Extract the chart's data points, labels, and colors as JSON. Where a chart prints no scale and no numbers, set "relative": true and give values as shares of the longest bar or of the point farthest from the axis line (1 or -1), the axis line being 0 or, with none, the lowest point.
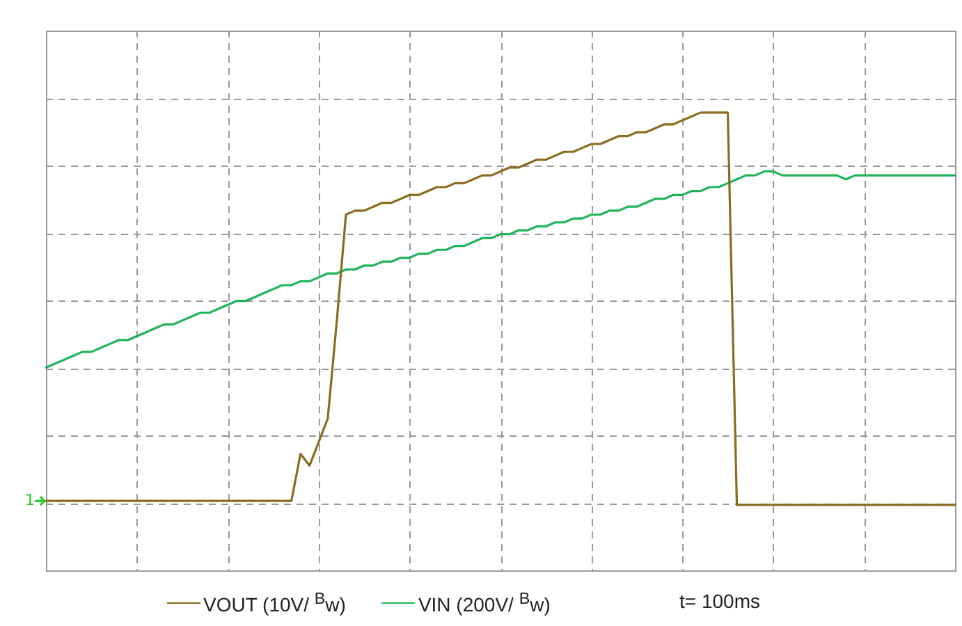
{
  "chart_data": {
    "type": "line",
    "relative": true,
    "grid": true,
    "legend": "bottom",
    "marker": "none",
    "line_style": "solid",
    "categories": [
      null,
      null,
      null,
      null,
      null,
      null,
      null,
      null,
      null,
      null,
      null,
      null,
      null,
      null,
      null,
      null,
      null,
      null,
      null,
      null,
      null,
      null,
      null,
      null,
      null,
      null,
      null,
      null,
      null,
      null,
      null,
      null,
      null,
      null,
      null,
      null,
      null,
      null,
      null,
      null,
      null,
      null,
      null,
      null,
      null,
      null,
      null,
      null,
      null,
      null,
      null,
      null,
      null,
      null,
      null,
      null,
      null,
      null,
      null,
      null,
      null,
      null,
      null,
      null,
      null,
      null,
      null,
      null,
      null,
      null,
      null,
      null,
      null,
      null,
      null,
      null,
      null,
      null,
      null,
      null,
      null,
      null,
      null,
      null,
      null,
      null,
      null,
      null,
      null,
      null,
      null,
      null,
      null,
      null,
      null,
      null,
      null,
      null,
      null,
      null,
      null
    ],
    "series": [
      {
        "name": "VOUT (10V/ $^{B}$w)",
        "color": "#8b6b1e",
        "values": [
          0.01,
          0.01,
          0.01,
          0.01,
          0.01,
          0.01,
          0.01,
          0.01,
          0.01,
          0.01,
          0.01,
          0.01,
          0.01,
          0.01,
          0.01,
          0.01,
          0.01,
          0.01,
          0.01,
          0.01,
          0.01,
          0.01,
          0.01,
          0.01,
          0.01,
          0.01,
          0.01,
          0.01,
          0.13,
          0.1,
          0.16,
          0.22,
          0.47,
          0.74,
          0.75,
          0.75,
          0.76,
          0.77,
          0.77,
          0.78,
          0.79,
          0.79,
          0.8,
          0.81,
          0.81,
          0.82,
          0.82,
          0.83,
          0.84,
          0.84,
          0.85,
          0.86,
          0.86,
          0.87,
          0.88,
          0.88,
          0.89,
          0.9,
          0.9,
          0.91,
          0.92,
          0.92,
          0.93,
          0.94,
          0.94,
          0.95,
          0.95,
          0.96,
          0.97,
          0.97,
          0.98,
          0.99,
          1,
          1,
          1,
          1,
          0,
          0,
          0,
          0,
          0,
          0,
          0,
          0,
          0,
          0,
          0,
          0,
          0,
          0,
          0,
          0,
          0,
          0,
          0,
          0,
          0,
          0,
          0,
          0,
          0
        ]
      },
      {
        "name": "VIN (200V/ $^{B}$w)",
        "color": "#1fb45a",
        "values": [
          0.35,
          0.36,
          0.37,
          0.38,
          0.39,
          0.39,
          0.4,
          0.41,
          0.42,
          0.42,
          0.43,
          0.44,
          0.45,
          0.46,
          0.46,
          0.47,
          0.48,
          0.49,
          0.49,
          0.5,
          0.51,
          0.52,
          0.52,
          0.53,
          0.54,
          0.55,
          0.56,
          0.56,
          0.57,
          0.57,
          0.58,
          0.59,
          0.59,
          0.6,
          0.6,
          0.61,
          0.61,
          0.62,
          0.62,
          0.63,
          0.63,
          0.64,
          0.64,
          0.65,
          0.65,
          0.66,
          0.66,
          0.67,
          0.68,
          0.68,
          0.69,
          0.69,
          0.7,
          0.7,
          0.71,
          0.71,
          0.72,
          0.72,
          0.73,
          0.73,
          0.74,
          0.74,
          0.75,
          0.75,
          0.76,
          0.76,
          0.77,
          0.78,
          0.78,
          0.79,
          0.79,
          0.8,
          0.8,
          0.81,
          0.81,
          0.82,
          0.83,
          0.84,
          0.84,
          0.85,
          0.85,
          0.84,
          0.84,
          0.84,
          0.84,
          0.84,
          0.84,
          0.84,
          0.83,
          0.84,
          0.84,
          0.84,
          0.84,
          0.84,
          0.84,
          0.84,
          0.84,
          0.84,
          0.84,
          0.84,
          0.84
        ]
      }
    ],
    "ref_lines": [
      {
        "axis": "y",
        "value": 0.01,
        "label": "1",
        "color": "#22cc22"
      }
    ],
    "annotations": [
      "t= 100ms"
    ]
  }
}
